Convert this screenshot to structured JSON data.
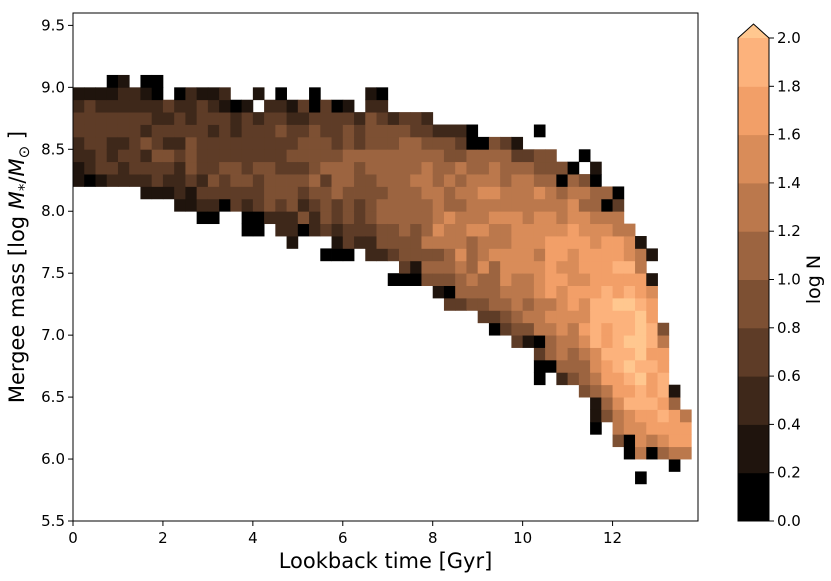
{
  "chart_data": {
    "type": "heatmap",
    "xlabel": "Lookback time [Gyr]",
    "ylabel_parts": [
      "Mergee mass [log ",
      "M",
      "*",
      "/",
      "M",
      "⊙",
      " ]"
    ],
    "colorbar_label": "log N",
    "xlim": [
      0,
      13.9
    ],
    "ylim": [
      5.5,
      9.6
    ],
    "x_ticks": [
      {
        "value": 0,
        "label": "0"
      },
      {
        "value": 2,
        "label": "2"
      },
      {
        "value": 4,
        "label": "4"
      },
      {
        "value": 6,
        "label": "6"
      },
      {
        "value": 8,
        "label": "8"
      },
      {
        "value": 10,
        "label": "10"
      },
      {
        "value": 12,
        "label": "12"
      }
    ],
    "y_ticks": [
      {
        "value": 5.5,
        "label": "5.5"
      },
      {
        "value": 6.0,
        "label": "6.0"
      },
      {
        "value": 6.5,
        "label": "6.5"
      },
      {
        "value": 7.0,
        "label": "7.0"
      },
      {
        "value": 7.5,
        "label": "7.5"
      },
      {
        "value": 8.0,
        "label": "8.0"
      },
      {
        "value": 8.5,
        "label": "8.5"
      },
      {
        "value": 9.0,
        "label": "9.0"
      },
      {
        "value": 9.5,
        "label": "9.5"
      }
    ],
    "colorbar": {
      "range": [
        0.0,
        2.0
      ],
      "extend": "max",
      "ticks": [
        {
          "value": 0.0,
          "label": "0.0"
        },
        {
          "value": 0.2,
          "label": "0.2"
        },
        {
          "value": 0.4,
          "label": "0.4"
        },
        {
          "value": 0.6,
          "label": "0.6"
        },
        {
          "value": 0.8,
          "label": "0.8"
        },
        {
          "value": 1.0,
          "label": "1.0"
        },
        {
          "value": 1.2,
          "label": "1.2"
        },
        {
          "value": 1.4,
          "label": "1.4"
        },
        {
          "value": 1.6,
          "label": "1.6"
        },
        {
          "value": 1.8,
          "label": "1.8"
        },
        {
          "value": 2.0,
          "label": "2.0"
        }
      ],
      "colors": [
        "#000000",
        "#1f140d",
        "#3e281a",
        "#5e3c27",
        "#7d5033",
        "#9c6440",
        "#bb784c",
        "#d98c59",
        "#f29f68",
        "#fcb27c",
        "#ffc78f"
      ]
    },
    "bin_width": 0.25,
    "bin_height": 0.1,
    "ridge": [
      [
        0.0,
        8.3,
        8.95
      ],
      [
        0.5,
        8.25,
        9.0
      ],
      [
        1.0,
        8.2,
        9.0
      ],
      [
        1.5,
        8.15,
        9.0
      ],
      [
        2.0,
        8.1,
        9.0
      ],
      [
        2.5,
        8.05,
        8.95
      ],
      [
        3.0,
        8.0,
        8.95
      ],
      [
        3.5,
        7.95,
        8.95
      ],
      [
        4.0,
        7.9,
        8.9
      ],
      [
        4.5,
        7.85,
        8.9
      ],
      [
        5.0,
        7.8,
        8.9
      ],
      [
        5.5,
        7.75,
        8.9
      ],
      [
        6.0,
        7.7,
        8.9
      ],
      [
        6.5,
        7.65,
        8.9
      ],
      [
        7.0,
        7.6,
        8.85
      ],
      [
        7.5,
        7.45,
        8.8
      ],
      [
        8.0,
        7.35,
        8.75
      ],
      [
        8.5,
        7.2,
        8.7
      ],
      [
        9.0,
        7.1,
        8.65
      ],
      [
        9.5,
        7.0,
        8.6
      ],
      [
        10.0,
        6.9,
        8.55
      ],
      [
        10.5,
        6.75,
        8.5
      ],
      [
        11.0,
        6.6,
        8.4
      ],
      [
        11.5,
        6.45,
        8.3
      ],
      [
        12.0,
        6.2,
        8.15
      ],
      [
        12.5,
        5.95,
        7.9
      ],
      [
        13.0,
        5.9,
        7.4
      ],
      [
        13.3,
        5.95,
        6.6
      ],
      [
        13.5,
        6.0,
        6.4
      ]
    ],
    "intensity_profile": [
      [
        0.0,
        0.65
      ],
      [
        2.0,
        0.7
      ],
      [
        4.0,
        0.8
      ],
      [
        6.0,
        0.95
      ],
      [
        8.0,
        1.25
      ],
      [
        10.0,
        1.5
      ],
      [
        11.5,
        1.75
      ],
      [
        12.5,
        2.05
      ],
      [
        13.5,
        1.7
      ]
    ]
  }
}
